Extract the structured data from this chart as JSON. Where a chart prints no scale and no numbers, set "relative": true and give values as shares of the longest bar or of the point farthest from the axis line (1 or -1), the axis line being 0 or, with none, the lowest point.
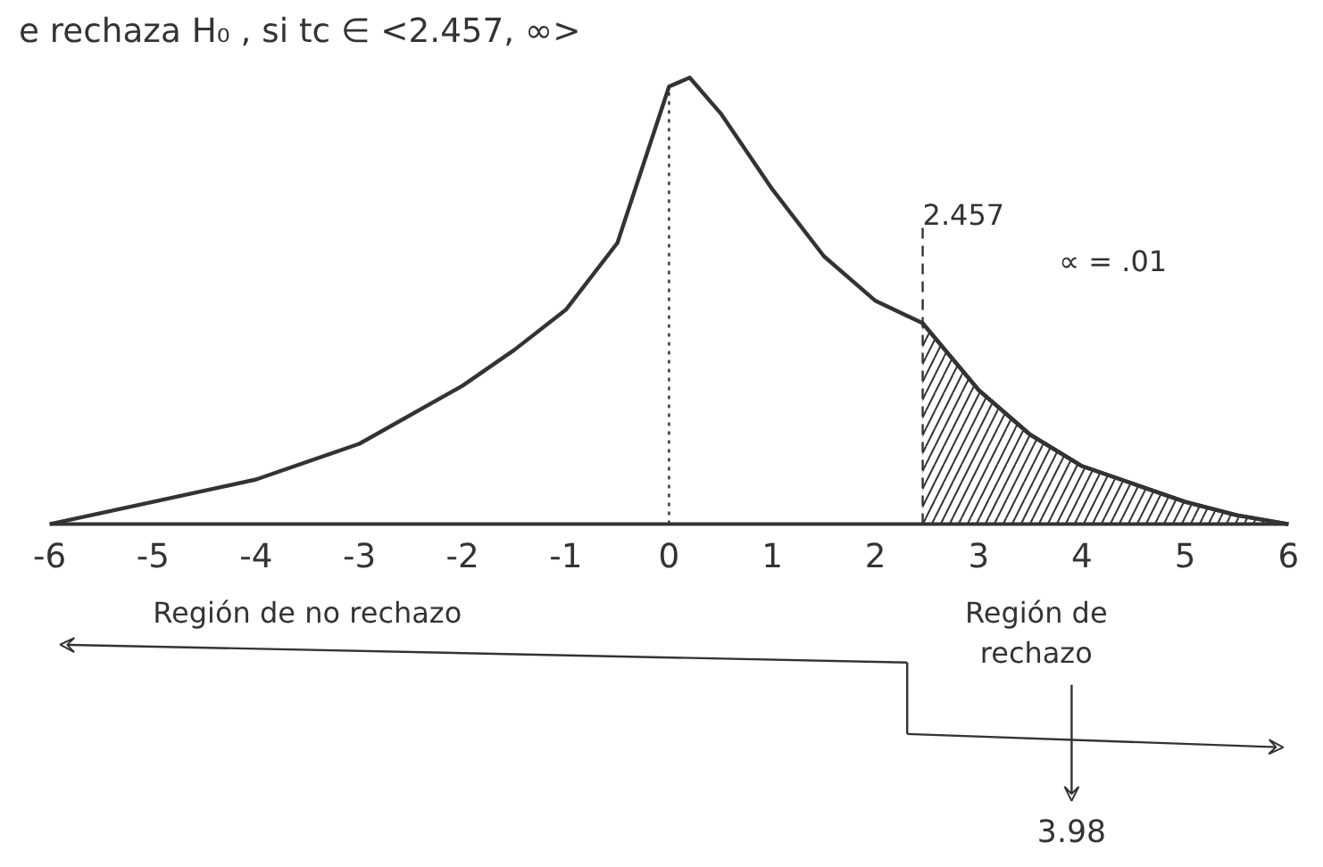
{
  "chart_data": {
    "type": "line",
    "relative": true,
    "title": "e rechaza H₀ , si tc ∈ <2.457, ∞>",
    "x": [
      -6,
      -5,
      -4,
      -3,
      -2,
      -1.5,
      -1,
      -0.5,
      0,
      0.2,
      0.5,
      1,
      1.5,
      2,
      2.457,
      3,
      3.5,
      4,
      4.5,
      5,
      5.5,
      6
    ],
    "series": [
      {
        "color": "#333333",
        "values": [
          0,
          0.05,
          0.1,
          0.18,
          0.31,
          0.39,
          0.48,
          0.63,
          0.98,
          1,
          0.92,
          0.75,
          0.6,
          0.5,
          0.45,
          0.3,
          0.2,
          0.13,
          0.09,
          0.05,
          0.02,
          0
        ]
      },
      {
        "type": "area",
        "color": "#333333",
        "x": [
          2.457,
          3,
          3.5,
          4,
          4.5,
          5,
          5.5,
          6
        ],
        "values": [
          0.45,
          0.3,
          0.2,
          0.13,
          0.09,
          0.05,
          0.02,
          0
        ]
      }
    ],
    "xlim": [
      -6,
      6
    ],
    "xticks": [
      -6,
      -5,
      -4,
      -3,
      -2,
      -1,
      0,
      1,
      2,
      3,
      4,
      5,
      6
    ],
    "grid": false,
    "marker": "none",
    "line_style": "solid",
    "ref_lines": [
      {
        "axis": "x",
        "value": 0,
        "label": null,
        "line_style": "dotted",
        "color": "#333333"
      },
      {
        "axis": "x",
        "value": 2.457,
        "label": "2.457",
        "line_style": "dashed",
        "color": "#333333"
      }
    ],
    "annotations": [
      "Región de no rechazo",
      "Región de\nrechazo",
      "3.98",
      "∝ = .01"
    ]
  }
}
